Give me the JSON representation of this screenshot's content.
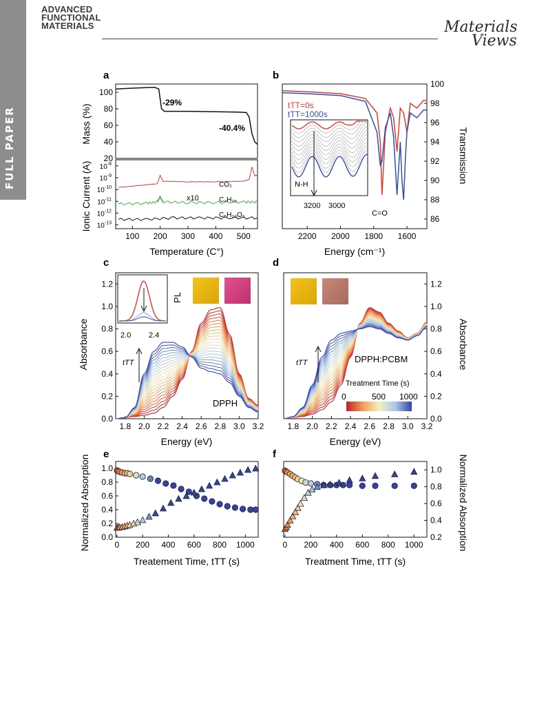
{
  "header": {
    "side_tab": "FULL PAPER",
    "journal_line1": "ADVANCED",
    "journal_line2": "FUNCTIONAL",
    "journal_line3": "MATERIALS",
    "publisher_line1": "Materials",
    "publisher_line2": "Views"
  },
  "panels": {
    "a": {
      "label": "a",
      "top_ylabel": "Mass (%)",
      "bottom_ylabel": "Ionic Current (A)",
      "xlabel": "Temperature (C°)",
      "ann_29": "-29%",
      "ann_404": "-40.4%",
      "ann_co2": "CO₂",
      "ann_x10": "x10",
      "ann_c4h10": "C₄H₁₀",
      "ann_c5": "C₅H₁₀O₂"
    },
    "b": {
      "label": "b",
      "ylabel": "Transmission",
      "xlabel": "Energy (cm⁻¹)",
      "legend_0": "tTT=0s",
      "legend_1000": "tTT=1000s",
      "ann_nh": "N-H",
      "ann_co": "C=O"
    },
    "c": {
      "label": "c",
      "ylabel": "Absorbance",
      "xlabel": "Energy (eV)",
      "ann_pl": "PL",
      "ann_dpp": "DPPH",
      "ann_ttt": "tTT"
    },
    "d": {
      "label": "d",
      "ylabel": "Absorbance",
      "xlabel": "Energy (eV)",
      "ann_dpp": "DPPH:PCBM",
      "ann_ttt": "tTT",
      "colorbar_title": "Treatment Time (s)",
      "colorbar_ticks": [
        "0",
        "500",
        "1000"
      ]
    },
    "e": {
      "label": "e",
      "ylabel": "Normalized Absorption",
      "xlabel": "Treatement Time, tTT (s)"
    },
    "f": {
      "label": "f",
      "ylabel": "Normalized Absorption",
      "xlabel": "Treatment Time, tTT (s)"
    }
  },
  "colors": {
    "red": "#e03a2f",
    "blue": "#3050b0",
    "green": "#3cb043",
    "black": "#111111",
    "side_tab": "#8c8d8f"
  },
  "chart_data": [
    {
      "panel": "a-top",
      "type": "line",
      "ylabel": "Mass (%)",
      "xlim": [
        40,
        550
      ],
      "ylim": [
        20,
        110
      ],
      "x": [
        40,
        100,
        180,
        195,
        205,
        215,
        300,
        400,
        480,
        510,
        520,
        530,
        540,
        550
      ],
      "values": [
        104,
        105,
        106,
        104,
        80,
        77,
        77,
        76.5,
        76,
        75.5,
        70,
        50,
        40,
        37
      ]
    },
    {
      "panel": "a-bottom",
      "type": "line",
      "ylabel": "Ionic Current (A)",
      "xlabel": "Temperature (C°)",
      "yscale": "log",
      "ylim": [
        1e-13,
        1e-08
      ],
      "series": [
        {
          "name": "CO₂",
          "x": [
            50,
            150,
            190,
            200,
            210,
            300,
            400,
            500,
            520,
            530,
            540,
            550
          ],
          "values": [
            1.5e-10,
            2.5e-10,
            3e-10,
            1.6e-09,
            5e-10,
            4.5e-10,
            4.5e-10,
            5e-10,
            7e-10,
            8e-09,
            1.5e-09,
            1.5e-09
          ]
        },
        {
          "name": "C₄H₁₀",
          "x": [
            50,
            150,
            190,
            200,
            210,
            300,
            400,
            500,
            550
          ],
          "values": [
            6e-12,
            7e-12,
            9e-12,
            2.5e-11,
            9e-12,
            8e-12,
            8e-12,
            9e-12,
            9e-12
          ]
        },
        {
          "name": "C₅H₁₀O₂",
          "x": [
            50,
            150,
            250,
            350,
            450,
            550
          ],
          "values": [
            3e-13,
            3e-13,
            4e-13,
            4e-13,
            4e-13,
            4e-13
          ]
        }
      ]
    },
    {
      "panel": "b",
      "type": "line",
      "xlabel": "Energy (cm⁻¹)",
      "ylabel": "Transmission",
      "xlim": [
        2350,
        1480
      ],
      "ylim": [
        85,
        100
      ],
      "series": [
        {
          "name": "tTT=0s",
          "x": [
            2350,
            2200,
            2000,
            1850,
            1780,
            1760,
            1750,
            1730,
            1700,
            1680,
            1660,
            1640,
            1620,
            1600,
            1580,
            1540,
            1500,
            1480
          ],
          "values": [
            99.3,
            99.2,
            99,
            98.5,
            97,
            94,
            88.5,
            95,
            97.5,
            96.5,
            93,
            97.5,
            97,
            95,
            98,
            97.5,
            98.3,
            98.3
          ]
        },
        {
          "name": "tTT=1000s",
          "x": [
            2350,
            2200,
            2000,
            1850,
            1780,
            1760,
            1750,
            1730,
            1700,
            1680,
            1660,
            1640,
            1630,
            1620,
            1610,
            1600,
            1580,
            1540,
            1500,
            1480
          ],
          "values": [
            99.1,
            99,
            98.8,
            98.2,
            95,
            91.5,
            92,
            95.5,
            97,
            94.5,
            88.5,
            94,
            90,
            88,
            92,
            95,
            97,
            96.5,
            97.3,
            97.3
          ]
        }
      ]
    },
    {
      "panel": "c",
      "type": "line",
      "xlabel": "Energy (eV)",
      "ylabel": "Absorbance",
      "xlim": [
        1.7,
        3.2
      ],
      "ylim": [
        0,
        1.3
      ],
      "x": [
        1.7,
        1.8,
        1.9,
        2.0,
        2.1,
        2.2,
        2.3,
        2.4,
        2.5,
        2.6,
        2.7,
        2.8,
        2.9,
        3.0,
        3.1,
        3.2
      ],
      "series": [
        {
          "name": "tTT=0s",
          "values": [
            0.0,
            0.01,
            0.02,
            0.03,
            0.05,
            0.1,
            0.2,
            0.35,
            0.6,
            0.85,
            0.97,
            0.99,
            0.75,
            0.4,
            0.18,
            0.12
          ]
        },
        {
          "name": "tTT=1000s",
          "values": [
            0.0,
            0.01,
            0.1,
            0.4,
            0.6,
            0.68,
            0.68,
            0.64,
            0.55,
            0.45,
            0.42,
            0.4,
            0.32,
            0.2,
            0.1,
            0.06
          ]
        }
      ]
    },
    {
      "panel": "d",
      "type": "line",
      "xlabel": "Energy (eV)",
      "ylabel": "Absorbance",
      "xlim": [
        1.7,
        3.2
      ],
      "ylim": [
        0,
        1.3
      ],
      "x": [
        1.7,
        1.8,
        1.9,
        2.0,
        2.1,
        2.2,
        2.3,
        2.4,
        2.5,
        2.6,
        2.7,
        2.8,
        2.9,
        3.0,
        3.1,
        3.2
      ],
      "series": [
        {
          "name": "tTT=0s",
          "values": [
            0.0,
            0.01,
            0.02,
            0.04,
            0.08,
            0.15,
            0.3,
            0.55,
            0.85,
            0.99,
            0.95,
            0.85,
            0.78,
            0.72,
            0.76,
            0.86
          ]
        },
        {
          "name": "tTT=1000s",
          "values": [
            0.0,
            0.02,
            0.1,
            0.3,
            0.55,
            0.7,
            0.76,
            0.78,
            0.8,
            0.82,
            0.8,
            0.76,
            0.72,
            0.7,
            0.74,
            0.82
          ]
        }
      ]
    },
    {
      "panel": "e",
      "type": "scatter",
      "xlabel": "Treatement Time, tTT (s)",
      "ylabel": "Normalized Absorption",
      "xlim": [
        -10,
        1100
      ],
      "ylim": [
        0,
        1.1
      ],
      "series": [
        {
          "name": "circles",
          "x": [
            0,
            10,
            20,
            40,
            60,
            80,
            100,
            150,
            200,
            260,
            320,
            380,
            440,
            500,
            560,
            620,
            680,
            740,
            800,
            860,
            920,
            980,
            1040,
            1080
          ],
          "values": [
            0.97,
            0.96,
            0.95,
            0.94,
            0.93,
            0.93,
            0.92,
            0.9,
            0.88,
            0.85,
            0.82,
            0.78,
            0.75,
            0.7,
            0.66,
            0.6,
            0.56,
            0.52,
            0.48,
            0.45,
            0.43,
            0.41,
            0.4,
            0.4
          ]
        },
        {
          "name": "triangles",
          "x": [
            0,
            10,
            20,
            40,
            60,
            80,
            100,
            130,
            160,
            200,
            250,
            300,
            360,
            420,
            480,
            540,
            600,
            660,
            720,
            780,
            840,
            900,
            960,
            1020,
            1080
          ],
          "values": [
            0.14,
            0.14,
            0.15,
            0.15,
            0.16,
            0.17,
            0.18,
            0.2,
            0.22,
            0.25,
            0.3,
            0.35,
            0.42,
            0.5,
            0.56,
            0.6,
            0.65,
            0.7,
            0.75,
            0.8,
            0.85,
            0.9,
            0.94,
            0.98,
            1.0
          ]
        }
      ]
    },
    {
      "panel": "f",
      "type": "scatter",
      "xlabel": "Treatment Time, tTT (s)",
      "ylabel": "Normalized Absorption",
      "xlim": [
        -10,
        1100
      ],
      "ylim": [
        0.2,
        1.1
      ],
      "series": [
        {
          "name": "circles",
          "x": [
            0,
            10,
            20,
            40,
            60,
            80,
            100,
            130,
            160,
            200,
            250,
            300,
            350,
            400,
            450,
            500,
            600,
            700,
            850,
            1000
          ],
          "values": [
            0.99,
            0.98,
            0.97,
            0.95,
            0.93,
            0.91,
            0.89,
            0.87,
            0.85,
            0.84,
            0.83,
            0.82,
            0.82,
            0.82,
            0.82,
            0.82,
            0.81,
            0.81,
            0.81,
            0.81
          ]
        },
        {
          "name": "triangles",
          "x": [
            0,
            10,
            20,
            40,
            60,
            80,
            100,
            120,
            150,
            180,
            210,
            250,
            300,
            350,
            420,
            500,
            600,
            700,
            850,
            1000
          ],
          "values": [
            0.3,
            0.32,
            0.35,
            0.4,
            0.45,
            0.5,
            0.55,
            0.6,
            0.67,
            0.73,
            0.77,
            0.8,
            0.82,
            0.83,
            0.85,
            0.88,
            0.9,
            0.93,
            0.95,
            0.98
          ]
        }
      ]
    }
  ]
}
